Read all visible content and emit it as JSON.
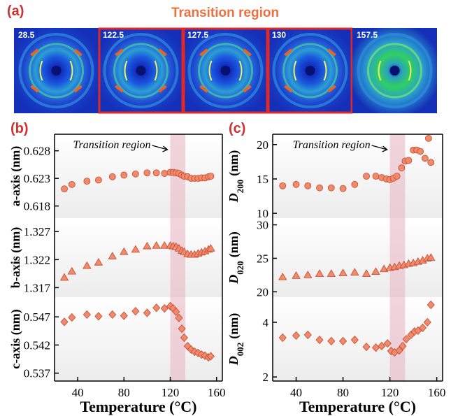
{
  "figure_a": {
    "label": "(a)",
    "title": "Transition region",
    "frames": [
      28.5,
      122.5,
      127.5,
      130,
      157.5
    ]
  },
  "chart_data": [
    {
      "type": "scatter",
      "panel": "(b)",
      "annotation": "Transition region",
      "ylabel": {
        "text": "a-axis (nm)"
      },
      "marker": "circle",
      "color": "#f08a6a",
      "highlight_range": [
        120,
        133
      ],
      "xlim": [
        20,
        165
      ],
      "ylim": [
        0.6158,
        0.631
      ],
      "yticks": [
        0.628,
        0.623,
        0.618
      ],
      "x": [
        28.5,
        35,
        48,
        58,
        70,
        80,
        90,
        100,
        108,
        115,
        120,
        122.5,
        125,
        127.5,
        130,
        132,
        135,
        138,
        141,
        144,
        147,
        150,
        153,
        155
      ],
      "values": [
        0.6211,
        0.6219,
        0.6225,
        0.6227,
        0.6233,
        0.6236,
        0.6238,
        0.624,
        0.624,
        0.6239,
        0.6241,
        0.6241,
        0.624,
        0.6239,
        0.6236,
        0.6234,
        0.6233,
        0.623,
        0.623,
        0.623,
        0.6231,
        0.6231,
        0.6233,
        0.6234
      ]
    },
    {
      "type": "scatter",
      "ylabel": {
        "text": "b-axis (nm)"
      },
      "marker": "triangle",
      "color": "#f08a6a",
      "highlight_range": [
        120,
        133
      ],
      "xlim": [
        20,
        165
      ],
      "ylim": [
        1.3153,
        1.3294
      ],
      "yticks": [
        1.327,
        1.322,
        1.317
      ],
      "x": [
        28.5,
        35,
        48,
        58,
        70,
        80,
        90,
        100,
        108,
        115,
        120,
        122.5,
        125,
        127.5,
        130,
        132,
        135,
        138,
        141,
        144,
        147,
        150,
        153,
        155
      ],
      "values": [
        1.3188,
        1.3199,
        1.3209,
        1.3215,
        1.3226,
        1.3234,
        1.3238,
        1.3244,
        1.3245,
        1.3245,
        1.3245,
        1.3244,
        1.3243,
        1.324,
        1.3236,
        1.3234,
        1.323,
        1.3229,
        1.3229,
        1.3231,
        1.3233,
        1.3235,
        1.3238,
        1.324
      ]
    },
    {
      "type": "scatter",
      "ylabel": {
        "text": "c-axis (nm)"
      },
      "marker": "diamond",
      "color": "#f08a6a",
      "highlight_range": [
        120,
        133
      ],
      "xlabel": "Temperature (°C)",
      "xlim": [
        20,
        165
      ],
      "xticks": [
        40,
        80,
        120,
        160
      ],
      "ylim": [
        0.5356,
        0.5505
      ],
      "yticks": [
        0.547,
        0.542,
        0.537
      ],
      "x": [
        28.5,
        35,
        48,
        58,
        70,
        80,
        90,
        100,
        108,
        115,
        120,
        122.5,
        125,
        127.5,
        130,
        132,
        135,
        138,
        141,
        144,
        147,
        150,
        153,
        155
      ],
      "values": [
        0.5461,
        0.5469,
        0.5474,
        0.5471,
        0.5474,
        0.5472,
        0.548,
        0.5477,
        0.5486,
        0.5485,
        0.5489,
        0.5485,
        0.5479,
        0.5468,
        0.5449,
        0.5433,
        0.5418,
        0.5412,
        0.5408,
        0.5406,
        0.5403,
        0.5401,
        0.5398,
        0.54
      ]
    },
    {
      "type": "scatter",
      "panel": "(c)",
      "annotation": "Transition region",
      "ylabel": {
        "symbol": "D",
        "subscript": "200",
        "unit": "(nm)"
      },
      "marker": "circle",
      "color": "#f08a6a",
      "highlight_range": [
        120,
        133
      ],
      "xlim": [
        20,
        165
      ],
      "ylim": [
        9.3,
        21.5
      ],
      "yticks": [
        10,
        15,
        20
      ],
      "x": [
        28.5,
        40,
        50,
        60,
        70,
        80,
        90,
        100,
        108,
        113,
        117,
        120,
        123,
        126,
        130,
        133,
        136,
        140,
        143,
        146,
        150,
        153,
        155
      ],
      "values": [
        14.0,
        14.2,
        14.0,
        13.7,
        13.7,
        13.6,
        14.2,
        15.4,
        15.4,
        15.2,
        15.0,
        14.9,
        15.1,
        15.4,
        16.6,
        17.6,
        17.7,
        19.2,
        19.2,
        19.0,
        18.0,
        20.9,
        17.4
      ]
    },
    {
      "type": "scatter",
      "ylabel": {
        "symbol": "D",
        "subscript": "020",
        "unit": "(nm)"
      },
      "marker": "triangle",
      "color": "#f08a6a",
      "highlight_range": [
        120,
        133
      ],
      "xlim": [
        20,
        165
      ],
      "ylim": [
        19.2,
        31
      ],
      "yticks": [
        30,
        25,
        20
      ],
      "x": [
        28.5,
        40,
        50,
        60,
        70,
        80,
        90,
        100,
        108,
        115,
        120,
        124,
        128,
        132,
        136,
        140,
        144,
        148,
        152,
        155
      ],
      "values": [
        22.2,
        22.4,
        22.5,
        22.7,
        22.7,
        22.8,
        22.9,
        22.7,
        23.0,
        23.4,
        23.6,
        23.7,
        23.9,
        24.0,
        24.2,
        24.3,
        24.5,
        24.7,
        25.0,
        25.1
      ]
    },
    {
      "type": "scatter",
      "ylabel": {
        "symbol": "D",
        "subscript": "002",
        "unit": "(nm)"
      },
      "marker": "diamond",
      "color": "#f08a6a",
      "highlight_range": [
        120,
        133
      ],
      "log_y": true,
      "xlabel": "Temperature (°C)",
      "xlim": [
        20,
        165
      ],
      "xticks": [
        40,
        80,
        120,
        160
      ],
      "ylim": [
        1.9,
        5.5
      ],
      "yticks": [
        4,
        2
      ],
      "x": [
        28.5,
        40,
        50,
        60,
        70,
        80,
        90,
        100,
        108,
        113,
        118,
        121,
        124,
        128,
        131,
        134,
        138,
        141,
        144,
        148,
        152,
        155
      ],
      "values": [
        3.29,
        3.38,
        3.41,
        3.2,
        3.15,
        3.15,
        3.2,
        2.93,
        2.9,
        2.96,
        3.06,
        2.78,
        2.73,
        2.8,
        2.96,
        3.23,
        3.41,
        3.56,
        3.6,
        3.73,
        4.0,
        4.99
      ]
    }
  ]
}
